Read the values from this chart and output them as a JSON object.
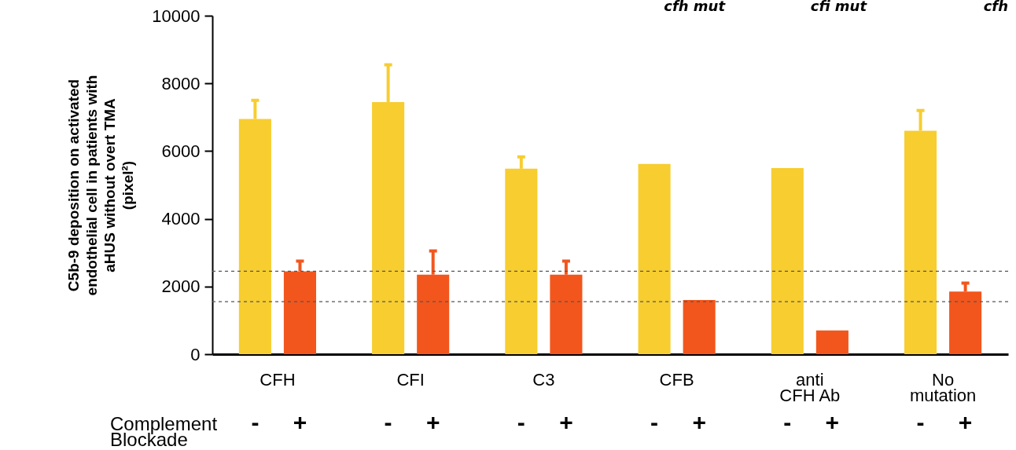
{
  "chart_data": {
    "type": "bar",
    "ylabel": "C5b-9 deposition on activated endothelial cell in patients with aHUS without overt TMA (pixel²)",
    "categories": [
      "CFH",
      "CFI",
      "C3",
      "CFB",
      "anti CFH Ab",
      "No mutation"
    ],
    "legend_title": "Complement Blockade",
    "series": [
      {
        "name": "-",
        "color": "#f7cd30",
        "values": [
          6950,
          7450,
          5480,
          5620,
          5500,
          6600
        ],
        "errors": [
          [
            6950,
            7500
          ],
          [
            7450,
            8550
          ],
          [
            5480,
            5830
          ],
          null,
          null,
          [
            6600,
            7200
          ]
        ]
      },
      {
        "name": "+",
        "color": "#f2561d",
        "values": [
          2450,
          2350,
          2350,
          1600,
          700,
          1850
        ],
        "errors": [
          [
            2450,
            2750
          ],
          [
            2350,
            3050
          ],
          [
            2350,
            2750
          ],
          null,
          null,
          [
            1850,
            2100
          ]
        ]
      }
    ],
    "ylim": [
      0,
      10000
    ],
    "yticks": [
      0,
      2000,
      4000,
      6000,
      8000,
      10000
    ],
    "ref_lines": [
      {
        "axis": "y",
        "value": 2450,
        "color": "#555555",
        "line_style": "dashed"
      },
      {
        "axis": "y",
        "value": 1550,
        "color": "#555555",
        "line_style": "dashed"
      }
    ],
    "annotations": [
      "cfh mut",
      "cfi mut",
      "cfh"
    ],
    "legend": false
  }
}
